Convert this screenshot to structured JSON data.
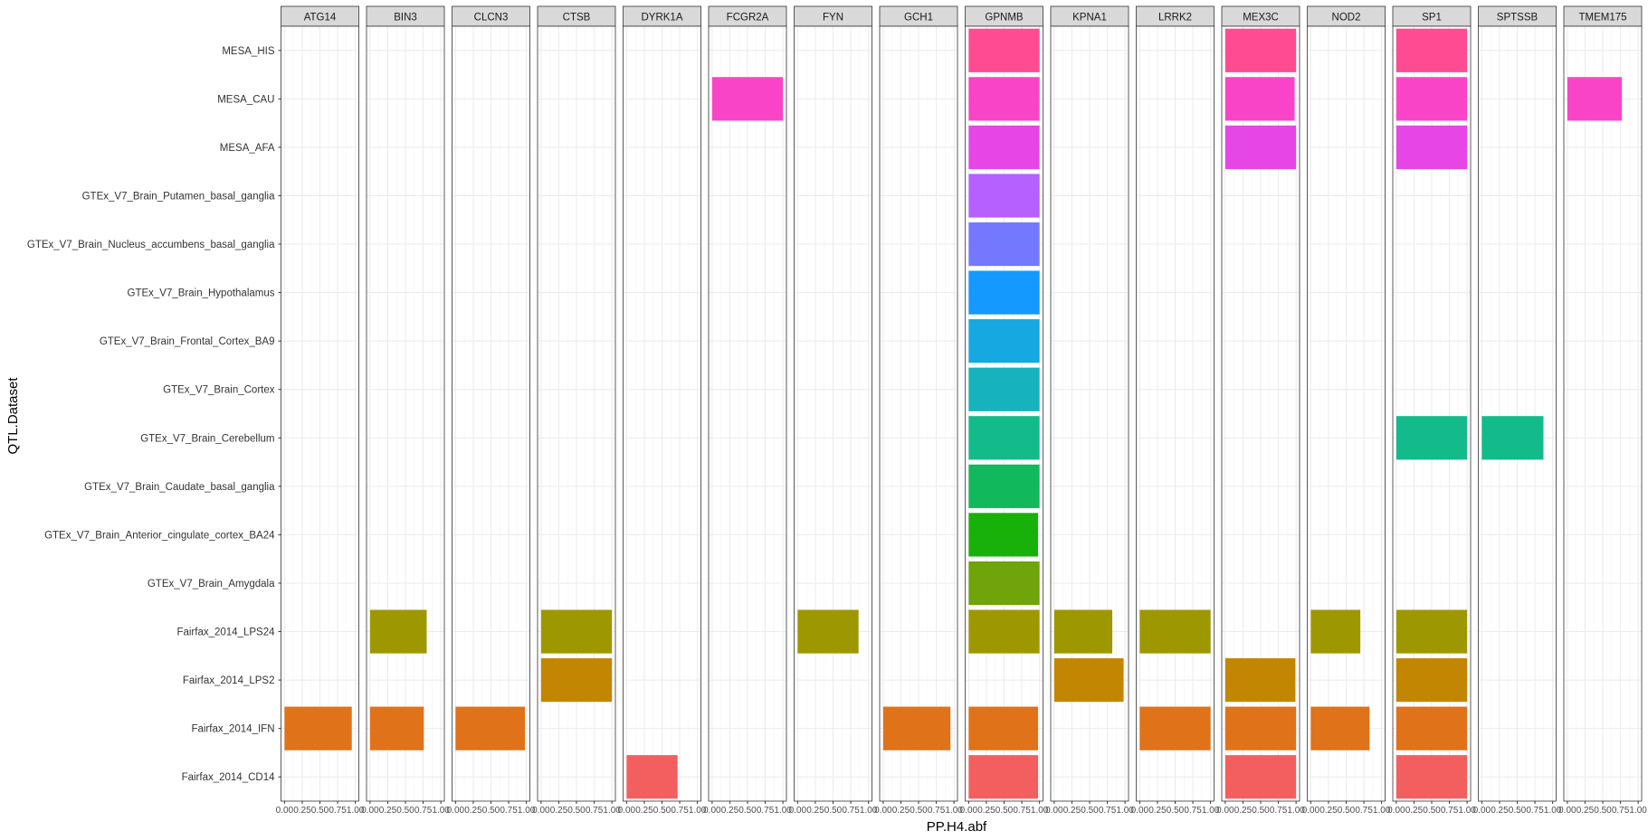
{
  "chart_data": {
    "type": "bar",
    "orientation": "horizontal",
    "faceted": true,
    "xlabel": "PP.H4.abf",
    "ylabel": "QTL.Dataset",
    "xlim": [
      0,
      1
    ],
    "x_ticks": [
      "0.00",
      "0.25",
      "0.50",
      "0.75",
      "1.00"
    ],
    "grid": true,
    "legend": "none",
    "panels": [
      "ATG14",
      "BIN3",
      "CLCN3",
      "CTSB",
      "DYRK1A",
      "FCGR2A",
      "FYN",
      "GCH1",
      "GPNMB",
      "KPNA1",
      "LRRK2",
      "MEX3C",
      "NOD2",
      "SP1",
      "SPTSSB",
      "TMEM175"
    ],
    "categories": [
      "MESA_HIS",
      "MESA_CAU",
      "MESA_AFA",
      "GTEx_V7_Brain_Putamen_basal_ganglia",
      "GTEx_V7_Brain_Nucleus_accumbens_basal_ganglia",
      "GTEx_V7_Brain_Hypothalamus",
      "GTEx_V7_Brain_Frontal_Cortex_BA9",
      "GTEx_V7_Brain_Cortex",
      "GTEx_V7_Brain_Cerebellum",
      "GTEx_V7_Brain_Caudate_basal_ganglia",
      "GTEx_V7_Brain_Anterior_cingulate_cortex_BA24",
      "GTEx_V7_Brain_Amygdala",
      "Fairfax_2014_LPS24",
      "Fairfax_2014_LPS2",
      "Fairfax_2014_IFN",
      "Fairfax_2014_CD14"
    ],
    "category_colors": {
      "MESA_HIS": "#FF4B91",
      "MESA_CAU": "#FA44C8",
      "MESA_AFA": "#E746E7",
      "GTEx_V7_Brain_Putamen_basal_ganglia": "#B560FF",
      "GTEx_V7_Brain_Nucleus_accumbens_basal_ganglia": "#7478FF",
      "GTEx_V7_Brain_Hypothalamus": "#1399FF",
      "GTEx_V7_Brain_Frontal_Cortex_BA9": "#16A8E1",
      "GTEx_V7_Brain_Cortex": "#16B3BC",
      "GTEx_V7_Brain_Cerebellum": "#14BB8A",
      "GTEx_V7_Brain_Caudate_basal_ganglia": "#12B85C",
      "GTEx_V7_Brain_Anterior_cingulate_cortex_BA24": "#18B10A",
      "GTEx_V7_Brain_Amygdala": "#6FA40A",
      "Fairfax_2014_LPS24": "#9E9800",
      "Fairfax_2014_LPS2": "#C38603",
      "Fairfax_2014_IFN": "#E0721A",
      "Fairfax_2014_CD14": "#F35F5F"
    },
    "bars": [
      {
        "panel": "ATG14",
        "dataset": "Fairfax_2014_IFN",
        "value": 0.95
      },
      {
        "panel": "BIN3",
        "dataset": "Fairfax_2014_LPS24",
        "value": 0.8
      },
      {
        "panel": "BIN3",
        "dataset": "Fairfax_2014_IFN",
        "value": 0.76
      },
      {
        "panel": "CLCN3",
        "dataset": "Fairfax_2014_IFN",
        "value": 0.98
      },
      {
        "panel": "CTSB",
        "dataset": "Fairfax_2014_LPS24",
        "value": 1.0
      },
      {
        "panel": "CTSB",
        "dataset": "Fairfax_2014_LPS2",
        "value": 1.0
      },
      {
        "panel": "DYRK1A",
        "dataset": "Fairfax_2014_CD14",
        "value": 0.72
      },
      {
        "panel": "FCGR2A",
        "dataset": "MESA_CAU",
        "value": 1.0
      },
      {
        "panel": "FYN",
        "dataset": "Fairfax_2014_LPS24",
        "value": 0.86
      },
      {
        "panel": "GCH1",
        "dataset": "Fairfax_2014_IFN",
        "value": 0.95
      },
      {
        "panel": "GPNMB",
        "dataset": "MESA_HIS",
        "value": 1.0
      },
      {
        "panel": "GPNMB",
        "dataset": "MESA_CAU",
        "value": 1.0
      },
      {
        "panel": "GPNMB",
        "dataset": "MESA_AFA",
        "value": 1.0
      },
      {
        "panel": "GPNMB",
        "dataset": "GTEx_V7_Brain_Putamen_basal_ganglia",
        "value": 1.0
      },
      {
        "panel": "GPNMB",
        "dataset": "GTEx_V7_Brain_Nucleus_accumbens_basal_ganglia",
        "value": 1.0
      },
      {
        "panel": "GPNMB",
        "dataset": "GTEx_V7_Brain_Hypothalamus",
        "value": 1.0
      },
      {
        "panel": "GPNMB",
        "dataset": "GTEx_V7_Brain_Frontal_Cortex_BA9",
        "value": 1.0
      },
      {
        "panel": "GPNMB",
        "dataset": "GTEx_V7_Brain_Cortex",
        "value": 1.0
      },
      {
        "panel": "GPNMB",
        "dataset": "GTEx_V7_Brain_Cerebellum",
        "value": 1.0
      },
      {
        "panel": "GPNMB",
        "dataset": "GTEx_V7_Brain_Caudate_basal_ganglia",
        "value": 1.0
      },
      {
        "panel": "GPNMB",
        "dataset": "GTEx_V7_Brain_Anterior_cingulate_cortex_BA24",
        "value": 0.98
      },
      {
        "panel": "GPNMB",
        "dataset": "GTEx_V7_Brain_Amygdala",
        "value": 1.0
      },
      {
        "panel": "GPNMB",
        "dataset": "Fairfax_2014_LPS24",
        "value": 1.0
      },
      {
        "panel": "GPNMB",
        "dataset": "Fairfax_2014_IFN",
        "value": 0.98
      },
      {
        "panel": "GPNMB",
        "dataset": "Fairfax_2014_CD14",
        "value": 0.98
      },
      {
        "panel": "KPNA1",
        "dataset": "Fairfax_2014_LPS24",
        "value": 0.82
      },
      {
        "panel": "KPNA1",
        "dataset": "Fairfax_2014_LPS2",
        "value": 0.98
      },
      {
        "panel": "LRRK2",
        "dataset": "Fairfax_2014_LPS24",
        "value": 1.0
      },
      {
        "panel": "LRRK2",
        "dataset": "Fairfax_2014_IFN",
        "value": 1.0
      },
      {
        "panel": "MEX3C",
        "dataset": "MESA_HIS",
        "value": 1.0
      },
      {
        "panel": "MEX3C",
        "dataset": "MESA_CAU",
        "value": 0.98
      },
      {
        "panel": "MEX3C",
        "dataset": "MESA_AFA",
        "value": 1.0
      },
      {
        "panel": "MEX3C",
        "dataset": "Fairfax_2014_LPS2",
        "value": 0.99
      },
      {
        "panel": "MEX3C",
        "dataset": "Fairfax_2014_IFN",
        "value": 1.0
      },
      {
        "panel": "MEX3C",
        "dataset": "Fairfax_2014_CD14",
        "value": 1.0
      },
      {
        "panel": "NOD2",
        "dataset": "Fairfax_2014_LPS24",
        "value": 0.7
      },
      {
        "panel": "NOD2",
        "dataset": "Fairfax_2014_IFN",
        "value": 0.83
      },
      {
        "panel": "SP1",
        "dataset": "MESA_HIS",
        "value": 1.0
      },
      {
        "panel": "SP1",
        "dataset": "MESA_CAU",
        "value": 1.0
      },
      {
        "panel": "SP1",
        "dataset": "MESA_AFA",
        "value": 1.0
      },
      {
        "panel": "SP1",
        "dataset": "GTEx_V7_Brain_Cerebellum",
        "value": 1.0
      },
      {
        "panel": "SP1",
        "dataset": "Fairfax_2014_LPS24",
        "value": 1.0
      },
      {
        "panel": "SP1",
        "dataset": "Fairfax_2014_LPS2",
        "value": 1.0
      },
      {
        "panel": "SP1",
        "dataset": "Fairfax_2014_IFN",
        "value": 1.0
      },
      {
        "panel": "SP1",
        "dataset": "Fairfax_2014_CD14",
        "value": 1.0
      },
      {
        "panel": "SPTSSB",
        "dataset": "GTEx_V7_Brain_Cerebellum",
        "value": 0.87
      },
      {
        "panel": "TMEM175",
        "dataset": "MESA_CAU",
        "value": 0.77
      }
    ]
  }
}
